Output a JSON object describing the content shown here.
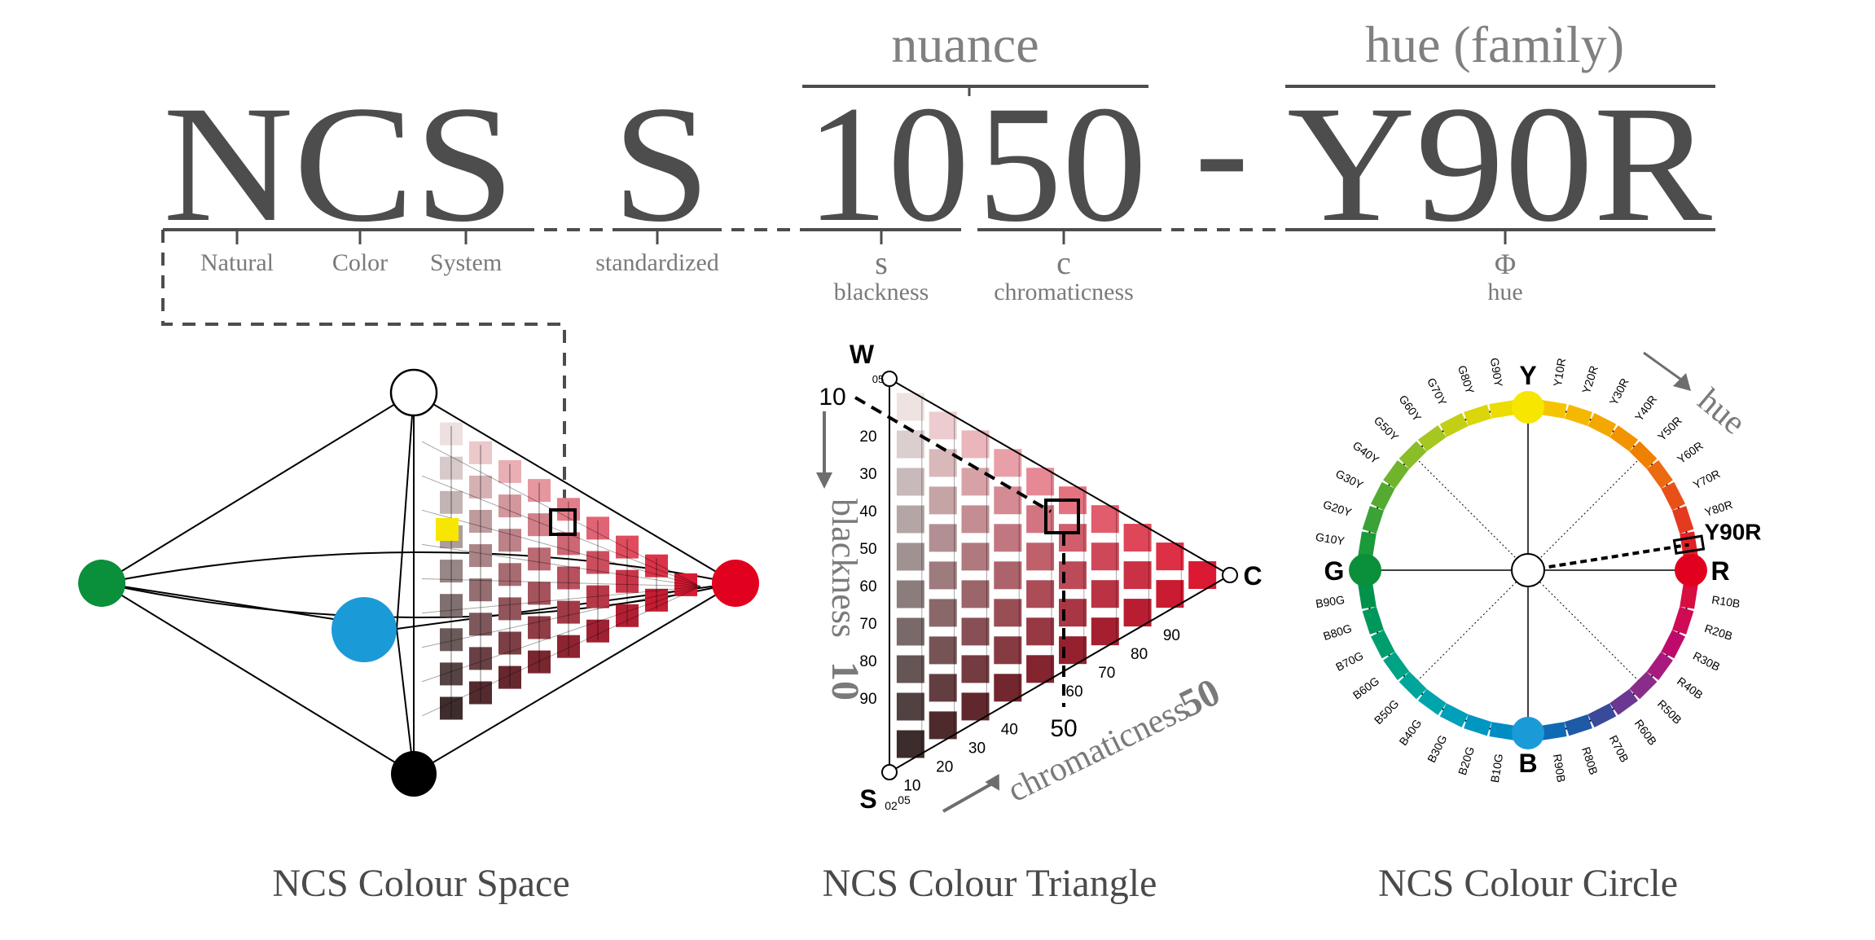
{
  "header": {
    "code": {
      "ncs": "NCS",
      "s": "S",
      "digits_blackness": "10",
      "digits_chromaticness": "50",
      "dash": "-",
      "hue": "Y90R"
    },
    "labels": {
      "nuance": "nuance",
      "hue_family": "hue (family)",
      "natural": "Natural",
      "color": "Color",
      "system": "System",
      "standardized": "standardized",
      "s_letter": "s",
      "blackness": "blackness",
      "c_letter": "c",
      "chromaticness": "chromaticness",
      "phi": "Φ",
      "hue": "hue"
    }
  },
  "captions": {
    "space": "NCS Colour Space",
    "triangle": "NCS Colour Triangle",
    "circle": "NCS Colour Circle"
  },
  "triangle": {
    "w_label": "W",
    "s_label": "S",
    "c_label": "C",
    "w_tick_top": "05",
    "s_tick_bottom_a": "02",
    "s_tick_bottom_b": "05",
    "blackness_label": "blackness",
    "blackness_value": "10",
    "chromaticness_label": "chromaticness",
    "chromaticness_value": "50",
    "marker_blackness": "10",
    "marker_chromaticness": "50",
    "blackness_ticks": [
      "10",
      "20",
      "30",
      "40",
      "50",
      "60",
      "70",
      "80",
      "90"
    ],
    "chroma_ticks": [
      "10",
      "20",
      "30",
      "40",
      "50",
      "60",
      "70",
      "80",
      "90"
    ]
  },
  "circle": {
    "y_label": "Y",
    "r_label": "R",
    "b_label": "B",
    "g_label": "G",
    "hue_label": "hue",
    "highlight": "Y90R",
    "highlight_fraction": 0.225,
    "segments": [
      {
        "label": "Y10R",
        "color": "#f5c400"
      },
      {
        "label": "Y20R",
        "color": "#f5b800"
      },
      {
        "label": "Y30R",
        "color": "#f3a800"
      },
      {
        "label": "Y40R",
        "color": "#f29400"
      },
      {
        "label": "Y50R",
        "color": "#ef8000"
      },
      {
        "label": "Y60R",
        "color": "#ec6a10"
      },
      {
        "label": "Y70R",
        "color": "#e85018"
      },
      {
        "label": "Y80R",
        "color": "#e43a20"
      },
      {
        "label": "Y90R",
        "color": "#e12226"
      },
      {
        "label": "R10B",
        "color": "#d80d40"
      },
      {
        "label": "R20B",
        "color": "#d00a55"
      },
      {
        "label": "R30B",
        "color": "#c00a6b"
      },
      {
        "label": "R40B",
        "color": "#a81a7e"
      },
      {
        "label": "R50B",
        "color": "#8a2d8a"
      },
      {
        "label": "R60B",
        "color": "#6a3893"
      },
      {
        "label": "R70B",
        "color": "#3a4a9a"
      },
      {
        "label": "R80B",
        "color": "#1e5aa6"
      },
      {
        "label": "R90B",
        "color": "#0f6ab5"
      },
      {
        "label": "B10G",
        "color": "#008dc4"
      },
      {
        "label": "B20G",
        "color": "#0096c2"
      },
      {
        "label": "B30G",
        "color": "#009fba"
      },
      {
        "label": "B40G",
        "color": "#00a5ab"
      },
      {
        "label": "B50G",
        "color": "#00a69a"
      },
      {
        "label": "B60G",
        "color": "#00a385"
      },
      {
        "label": "B70G",
        "color": "#009e6e"
      },
      {
        "label": "B80G",
        "color": "#00985a"
      },
      {
        "label": "B90G",
        "color": "#00924a"
      },
      {
        "label": "G10Y",
        "color": "#1b9a3a"
      },
      {
        "label": "G20Y",
        "color": "#3aa236"
      },
      {
        "label": "G30Y",
        "color": "#55aa32"
      },
      {
        "label": "G40Y",
        "color": "#70b42e"
      },
      {
        "label": "G50Y",
        "color": "#8abd28"
      },
      {
        "label": "G60Y",
        "color": "#a6c620"
      },
      {
        "label": "G70Y",
        "color": "#c2cf14"
      },
      {
        "label": "G80Y",
        "color": "#dad60a"
      },
      {
        "label": "G90Y",
        "color": "#ecdc02"
      }
    ]
  },
  "colors": {
    "yellow": "#f6e600",
    "red": "#e1001e",
    "blue": "#1b9ad8",
    "green": "#0a8f3a",
    "black": "#000000",
    "white": "#ffffff",
    "text_dark": "#4a4a4a",
    "text_grey": "#7a7a7a",
    "line_grey": "#4d4d4d"
  }
}
